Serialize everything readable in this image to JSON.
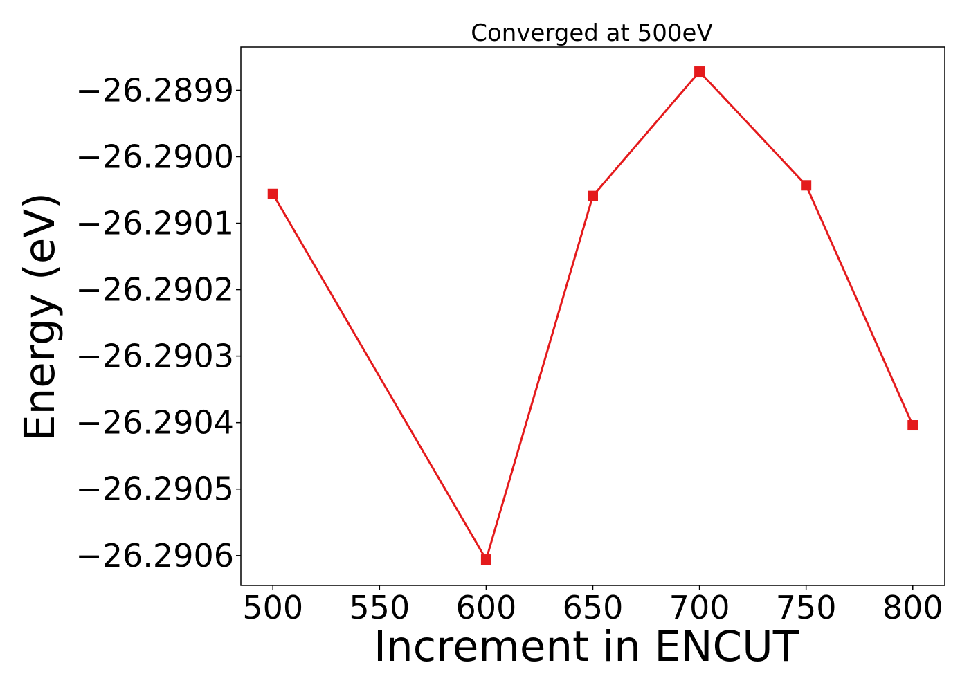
{
  "chart_data": {
    "type": "line",
    "title": "Converged at 500eV",
    "xlabel": "Increment in ENCUT",
    "ylabel": "Energy (eV)",
    "x": [
      500,
      600,
      650,
      700,
      750,
      800
    ],
    "series": [
      {
        "values": [
          -26.290056,
          -26.290606,
          -26.290059,
          -26.289872,
          -26.290043,
          -26.290404
        ],
        "color": "#e41a1c",
        "marker": "square"
      }
    ],
    "xticks": [
      500,
      550,
      600,
      650,
      700,
      750,
      800
    ],
    "xtick_labels": [
      "500",
      "550",
      "600",
      "650",
      "700",
      "750",
      "800"
    ],
    "yticks": [
      -26.2899,
      -26.29,
      -26.2901,
      -26.2902,
      -26.2903,
      -26.2904,
      -26.2905,
      -26.2906
    ],
    "ytick_labels": [
      "−26.2899",
      "−26.2900",
      "−26.2901",
      "−26.2902",
      "−26.2903",
      "−26.2904",
      "−26.2905",
      "−26.2906"
    ],
    "xlim": [
      485,
      815
    ],
    "ylim": [
      -26.290645,
      -26.289835
    ],
    "grid": false,
    "legend": false
  }
}
